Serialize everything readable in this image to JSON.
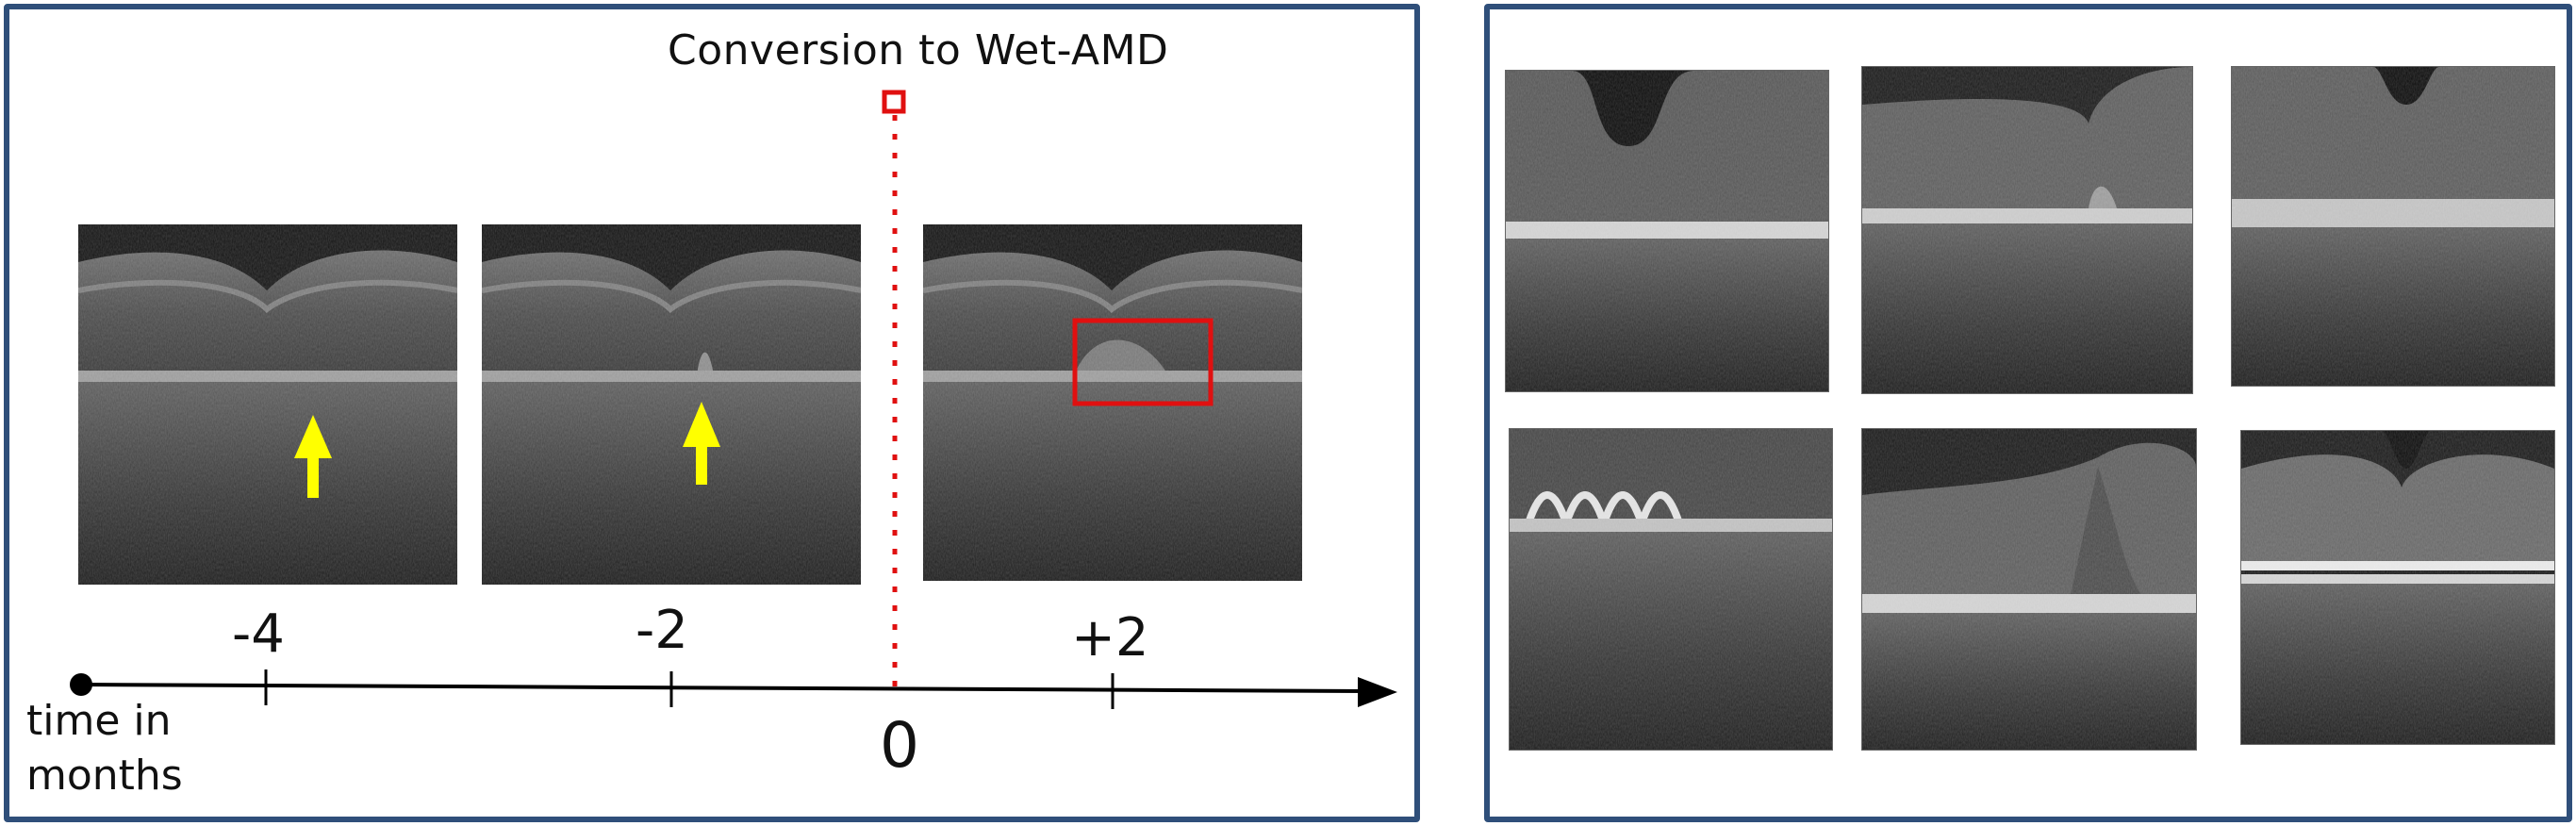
{
  "figure": {
    "conversion_label": "Conversion to Wet-AMD",
    "axis_label": "time in months",
    "timeline": {
      "ticks": [
        {
          "value": -4,
          "label": "-4"
        },
        {
          "value": -2,
          "label": "-2"
        },
        {
          "value": 2,
          "label": "+2"
        }
      ],
      "zero_label": "0"
    },
    "colors": {
      "panel_border": "#2f4f7a",
      "conversion_marker": "#e01010",
      "arrow": "#ffff00",
      "axis": "#000000"
    }
  }
}
